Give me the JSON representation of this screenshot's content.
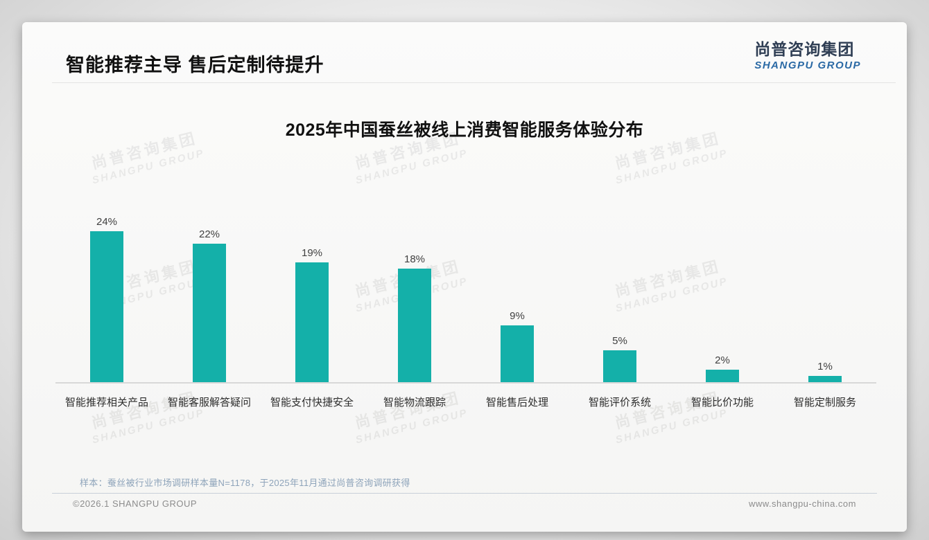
{
  "header": {
    "title": "智能推荐主导 售后定制待提升",
    "logo_cn": "尚普咨询集团",
    "logo_en": "SHANGPU GROUP"
  },
  "colors": {
    "bar": "#14b0a9",
    "logo_cn": "#2f3e54",
    "logo_en": "#2a69a5"
  },
  "chart_data": {
    "type": "bar",
    "title": "2025年中国蚕丝被线上消费智能服务体验分布",
    "categories": [
      "智能推荐相关产品",
      "智能客服解答疑问",
      "智能支付快捷安全",
      "智能物流跟踪",
      "智能售后处理",
      "智能评价系统",
      "智能比价功能",
      "智能定制服务"
    ],
    "values": [
      24,
      22,
      19,
      18,
      9,
      5,
      2,
      1
    ],
    "value_labels": [
      "24%",
      "22%",
      "19%",
      "18%",
      "9%",
      "5%",
      "2%",
      "1%"
    ],
    "unit": "%",
    "xlabel": "",
    "ylabel": "",
    "ylim": [
      0,
      26
    ],
    "grid": false,
    "legend": null,
    "bar_color": "#14b0a9"
  },
  "watermark": {
    "line1": "尚普咨询集团",
    "line2": "SHANGPU GROUP"
  },
  "footer": {
    "note": "样本：蚕丝被行业市场调研样本量N=1178，于2025年11月通过尚普咨询调研获得",
    "copyright": "©2026.1 SHANGPU GROUP",
    "website": "www.shangpu-china.com"
  }
}
